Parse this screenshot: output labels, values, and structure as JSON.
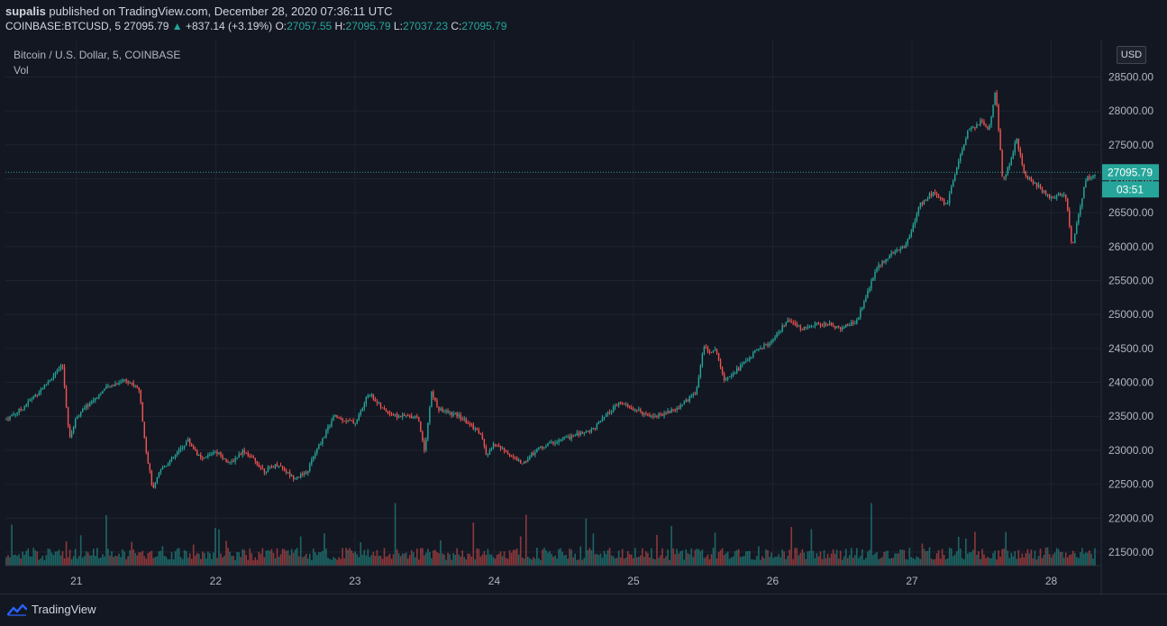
{
  "header": {
    "publisher": "supalis",
    "published_text": "published on TradingView.com, December 28, 2020 07:36:11 UTC",
    "symbol": "COINBASE:BTCUSD, 5",
    "last": "27095.79",
    "change": "+837.14 (+3.19%)",
    "o_label": "O:",
    "o_value": "27057.55",
    "h_label": "H:",
    "h_value": "27095.79",
    "l_label": "L:",
    "l_value": "27037.23",
    "c_label": "C:",
    "c_value": "27095.79"
  },
  "legend": {
    "title": "Bitcoin / U.S. Dollar, 5, COINBASE",
    "volume": "Vol"
  },
  "currency_button": "USD",
  "price_badge": {
    "price": "27095.79",
    "countdown": "03:51"
  },
  "footer": {
    "brand": "TradingView"
  },
  "colors": {
    "up": "#26a69a",
    "down": "#ef5350",
    "background": "#131722",
    "grid": "#1f2330"
  },
  "chart_data": {
    "type": "candlestick",
    "y_ticks": [
      "28500.00",
      "28000.00",
      "27500.00",
      "27000.00",
      "26500.00",
      "26000.00",
      "25500.00",
      "25000.00",
      "24500.00",
      "24000.00",
      "23500.00",
      "23000.00",
      "22500.00",
      "22000.00",
      "21500.00"
    ],
    "x_ticks": [
      "21",
      "22",
      "23",
      "24",
      "25",
      "26",
      "27",
      "28"
    ],
    "ylim": [
      21300,
      29050
    ],
    "x_day_range": [
      20.49,
      28.32
    ],
    "current_price": 27095.79,
    "price_path": [
      [
        20.49,
        23450
      ],
      [
        20.6,
        23600
      ],
      [
        20.75,
        23900
      ],
      [
        20.9,
        24250
      ],
      [
        20.95,
        23150
      ],
      [
        21.0,
        23500
      ],
      [
        21.1,
        23700
      ],
      [
        21.2,
        23900
      ],
      [
        21.35,
        24050
      ],
      [
        21.45,
        23900
      ],
      [
        21.5,
        23000
      ],
      [
        21.55,
        22400
      ],
      [
        21.6,
        22700
      ],
      [
        21.7,
        22900
      ],
      [
        21.8,
        23150
      ],
      [
        21.9,
        22850
      ],
      [
        22.0,
        23000
      ],
      [
        22.1,
        22800
      ],
      [
        22.2,
        23000
      ],
      [
        22.35,
        22700
      ],
      [
        22.45,
        22800
      ],
      [
        22.55,
        22600
      ],
      [
        22.65,
        22650
      ],
      [
        22.7,
        22900
      ],
      [
        22.75,
        23100
      ],
      [
        22.85,
        23500
      ],
      [
        23.0,
        23400
      ],
      [
        23.05,
        23600
      ],
      [
        23.1,
        23850
      ],
      [
        23.2,
        23600
      ],
      [
        23.3,
        23500
      ],
      [
        23.45,
        23500
      ],
      [
        23.5,
        23000
      ],
      [
        23.55,
        23850
      ],
      [
        23.6,
        23600
      ],
      [
        23.75,
        23500
      ],
      [
        23.9,
        23250
      ],
      [
        23.95,
        22900
      ],
      [
        24.0,
        23100
      ],
      [
        24.1,
        22950
      ],
      [
        24.2,
        22800
      ],
      [
        24.3,
        23000
      ],
      [
        24.4,
        23100
      ],
      [
        24.55,
        23200
      ],
      [
        24.7,
        23300
      ],
      [
        24.8,
        23500
      ],
      [
        24.9,
        23700
      ],
      [
        25.0,
        23600
      ],
      [
        25.15,
        23500
      ],
      [
        25.3,
        23600
      ],
      [
        25.45,
        23850
      ],
      [
        25.5,
        24500
      ],
      [
        25.6,
        24450
      ],
      [
        25.65,
        24050
      ],
      [
        25.75,
        24200
      ],
      [
        25.9,
        24500
      ],
      [
        26.0,
        24600
      ],
      [
        26.1,
        24900
      ],
      [
        26.2,
        24800
      ],
      [
        26.3,
        24850
      ],
      [
        26.4,
        24850
      ],
      [
        26.5,
        24800
      ],
      [
        26.6,
        24900
      ],
      [
        26.65,
        25150
      ],
      [
        26.75,
        25700
      ],
      [
        26.85,
        25900
      ],
      [
        26.95,
        26000
      ],
      [
        27.0,
        26250
      ],
      [
        27.05,
        26600
      ],
      [
        27.15,
        26800
      ],
      [
        27.25,
        26600
      ],
      [
        27.3,
        27000
      ],
      [
        27.4,
        27700
      ],
      [
        27.5,
        27850
      ],
      [
        27.55,
        27700
      ],
      [
        27.6,
        28300
      ],
      [
        27.65,
        27000
      ],
      [
        27.7,
        27200
      ],
      [
        27.75,
        27600
      ],
      [
        27.8,
        27100
      ],
      [
        27.9,
        26900
      ],
      [
        28.0,
        26700
      ],
      [
        28.1,
        26800
      ],
      [
        28.15,
        26000
      ],
      [
        28.2,
        26500
      ],
      [
        28.25,
        27000
      ],
      [
        28.3,
        27050
      ],
      [
        28.32,
        27095
      ]
    ]
  }
}
